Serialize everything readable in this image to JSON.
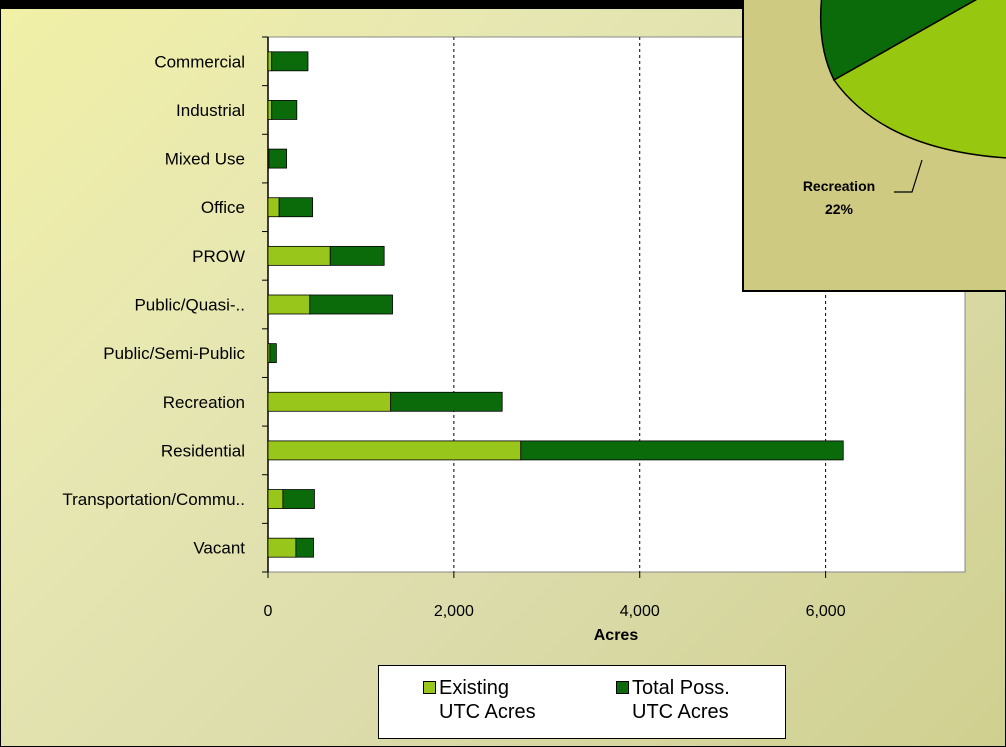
{
  "chart_data": [
    {
      "type": "bar",
      "orientation": "horizontal",
      "stacked": true,
      "categories": [
        "Commercial",
        "Industrial",
        "Mixed Use",
        "Office",
        "PROW",
        "Public/Quasi-..",
        "Public/Semi-Public",
        "Recreation",
        "Residential",
        "Transportation/Commu..",
        "Vacant"
      ],
      "series": [
        {
          "name": "Existing UTC Acres",
          "color": "#99c61a",
          "values": [
            40,
            40,
            10,
            120,
            670,
            450,
            20,
            1320,
            2720,
            160,
            300
          ]
        },
        {
          "name": "Total Poss. UTC Acres",
          "color": "#0b6b0b",
          "values": [
            390,
            270,
            190,
            360,
            580,
            890,
            70,
            1200,
            3470,
            340,
            190
          ]
        }
      ],
      "xlabel": "Acres",
      "xlim": [
        0,
        7500
      ],
      "xticks": [
        0,
        2000,
        4000,
        6000
      ],
      "xtick_labels": [
        "0",
        "2,000",
        "4,000",
        "6,000"
      ],
      "grid": "vertical dashed",
      "legend_position": "bottom"
    },
    {
      "type": "pie",
      "partial": true,
      "labels": [
        "Recreation"
      ],
      "values": [
        22
      ],
      "value_labels": [
        "22%"
      ]
    }
  ],
  "legend": {
    "existing_line1": "Existing",
    "existing_line2": "UTC Acres",
    "total_line1": "Total Poss.",
    "total_line2": "UTC Acres"
  },
  "inset": {
    "label_name": "Recreation",
    "label_value": "22%",
    "colors": {
      "light": "#97c70f",
      "dark": "#0b6b0b"
    }
  }
}
